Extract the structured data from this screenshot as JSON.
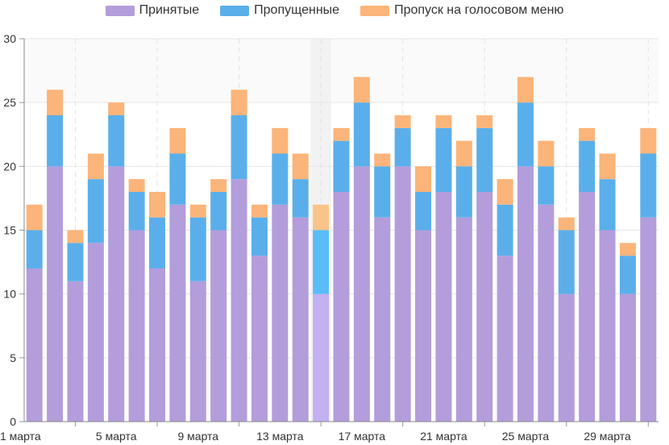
{
  "chart_data": {
    "type": "bar",
    "stacked": true,
    "categories": [
      "1 марта",
      "2 марта",
      "3 марта",
      "4 марта",
      "5 марта",
      "6 марта",
      "7 марта",
      "8 марта",
      "9 марта",
      "10 марта",
      "11 марта",
      "12 марта",
      "13 марта",
      "14 марта",
      "15 марта",
      "16 марта",
      "17 марта",
      "18 марта",
      "19 марта",
      "20 марта",
      "21 марта",
      "22 марта",
      "23 марта",
      "24 марта",
      "25 марта",
      "26 марта",
      "27 марта",
      "28 марта",
      "29 марта",
      "30 марта",
      "31 марта"
    ],
    "x_tick_labels": [
      "1 марта",
      "5 марта",
      "9 марта",
      "13 марта",
      "17 марта",
      "21 марта",
      "25 марта",
      "29 марта"
    ],
    "series": [
      {
        "name": "Принятые",
        "color": "#b39ddb",
        "values": [
          12,
          20,
          11,
          14,
          20,
          15,
          12,
          17,
          11,
          15,
          19,
          13,
          17,
          16,
          10,
          18,
          20,
          16,
          20,
          15,
          18,
          16,
          18,
          13,
          20,
          17,
          10,
          18,
          15,
          10,
          16
        ]
      },
      {
        "name": "Пропущенные",
        "color": "#5aafea",
        "values": [
          3,
          4,
          3,
          5,
          4,
          3,
          4,
          4,
          5,
          3,
          5,
          3,
          4,
          3,
          5,
          4,
          5,
          4,
          3,
          3,
          5,
          4,
          5,
          4,
          5,
          3,
          5,
          4,
          4,
          3,
          5
        ]
      },
      {
        "name": "Пропуск на голосовом меню",
        "color": "#fbb479",
        "values": [
          2,
          2,
          1,
          2,
          1,
          1,
          2,
          2,
          1,
          1,
          2,
          1,
          2,
          2,
          2,
          1,
          2,
          1,
          1,
          2,
          1,
          2,
          1,
          2,
          2,
          2,
          1,
          1,
          2,
          1,
          2
        ]
      }
    ],
    "ylim": [
      0,
      30
    ],
    "y_ticks": [
      0,
      5,
      10,
      15,
      20,
      25,
      30
    ],
    "grid": true,
    "legend": "top",
    "highlighted_category": "15 марта",
    "title": "",
    "xlabel": "",
    "ylabel": ""
  }
}
